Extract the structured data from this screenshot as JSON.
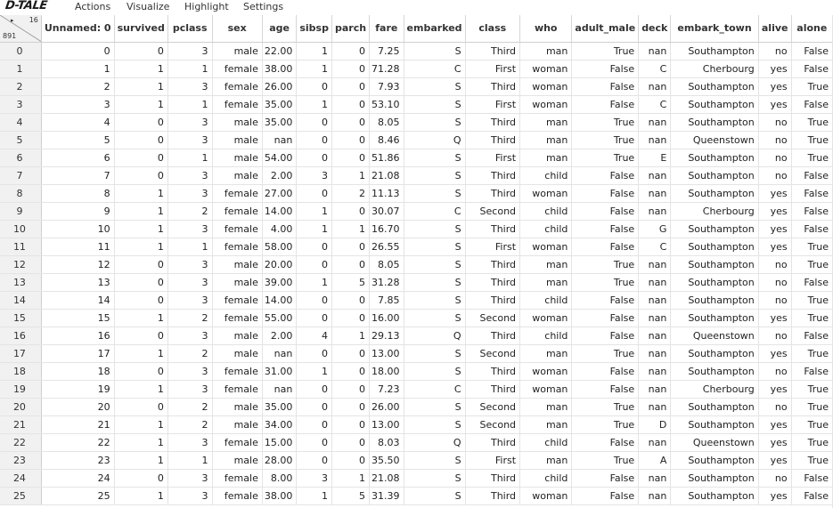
{
  "app": {
    "logo": "D-TALE"
  },
  "menu": [
    {
      "label": "Actions"
    },
    {
      "label": "Visualize"
    },
    {
      "label": "Highlight"
    },
    {
      "label": "Settings"
    }
  ],
  "grid": {
    "column_count": "16",
    "row_count": "891",
    "play_icon": "▸",
    "columns": [
      "Unnamed: 0",
      "survived",
      "pclass",
      "sex",
      "age",
      "sibsp",
      "parch",
      "fare",
      "embarked",
      "class",
      "who",
      "adult_male",
      "deck",
      "embark_town",
      "alive",
      "alone"
    ],
    "rows": [
      [
        "0",
        "0",
        "0",
        "3",
        "male",
        "22.00",
        "1",
        "0",
        "7.25",
        "S",
        "Third",
        "man",
        "True",
        "nan",
        "Southampton",
        "no",
        "False"
      ],
      [
        "1",
        "1",
        "1",
        "1",
        "female",
        "38.00",
        "1",
        "0",
        "71.28",
        "C",
        "First",
        "woman",
        "False",
        "C",
        "Cherbourg",
        "yes",
        "False"
      ],
      [
        "2",
        "2",
        "1",
        "3",
        "female",
        "26.00",
        "0",
        "0",
        "7.93",
        "S",
        "Third",
        "woman",
        "False",
        "nan",
        "Southampton",
        "yes",
        "True"
      ],
      [
        "3",
        "3",
        "1",
        "1",
        "female",
        "35.00",
        "1",
        "0",
        "53.10",
        "S",
        "First",
        "woman",
        "False",
        "C",
        "Southampton",
        "yes",
        "False"
      ],
      [
        "4",
        "4",
        "0",
        "3",
        "male",
        "35.00",
        "0",
        "0",
        "8.05",
        "S",
        "Third",
        "man",
        "True",
        "nan",
        "Southampton",
        "no",
        "True"
      ],
      [
        "5",
        "5",
        "0",
        "3",
        "male",
        "nan",
        "0",
        "0",
        "8.46",
        "Q",
        "Third",
        "man",
        "True",
        "nan",
        "Queenstown",
        "no",
        "True"
      ],
      [
        "6",
        "6",
        "0",
        "1",
        "male",
        "54.00",
        "0",
        "0",
        "51.86",
        "S",
        "First",
        "man",
        "True",
        "E",
        "Southampton",
        "no",
        "True"
      ],
      [
        "7",
        "7",
        "0",
        "3",
        "male",
        "2.00",
        "3",
        "1",
        "21.08",
        "S",
        "Third",
        "child",
        "False",
        "nan",
        "Southampton",
        "no",
        "False"
      ],
      [
        "8",
        "8",
        "1",
        "3",
        "female",
        "27.00",
        "0",
        "2",
        "11.13",
        "S",
        "Third",
        "woman",
        "False",
        "nan",
        "Southampton",
        "yes",
        "False"
      ],
      [
        "9",
        "9",
        "1",
        "2",
        "female",
        "14.00",
        "1",
        "0",
        "30.07",
        "C",
        "Second",
        "child",
        "False",
        "nan",
        "Cherbourg",
        "yes",
        "False"
      ],
      [
        "10",
        "10",
        "1",
        "3",
        "female",
        "4.00",
        "1",
        "1",
        "16.70",
        "S",
        "Third",
        "child",
        "False",
        "G",
        "Southampton",
        "yes",
        "False"
      ],
      [
        "11",
        "11",
        "1",
        "1",
        "female",
        "58.00",
        "0",
        "0",
        "26.55",
        "S",
        "First",
        "woman",
        "False",
        "C",
        "Southampton",
        "yes",
        "True"
      ],
      [
        "12",
        "12",
        "0",
        "3",
        "male",
        "20.00",
        "0",
        "0",
        "8.05",
        "S",
        "Third",
        "man",
        "True",
        "nan",
        "Southampton",
        "no",
        "True"
      ],
      [
        "13",
        "13",
        "0",
        "3",
        "male",
        "39.00",
        "1",
        "5",
        "31.28",
        "S",
        "Third",
        "man",
        "True",
        "nan",
        "Southampton",
        "no",
        "False"
      ],
      [
        "14",
        "14",
        "0",
        "3",
        "female",
        "14.00",
        "0",
        "0",
        "7.85",
        "S",
        "Third",
        "child",
        "False",
        "nan",
        "Southampton",
        "no",
        "True"
      ],
      [
        "15",
        "15",
        "1",
        "2",
        "female",
        "55.00",
        "0",
        "0",
        "16.00",
        "S",
        "Second",
        "woman",
        "False",
        "nan",
        "Southampton",
        "yes",
        "True"
      ],
      [
        "16",
        "16",
        "0",
        "3",
        "male",
        "2.00",
        "4",
        "1",
        "29.13",
        "Q",
        "Third",
        "child",
        "False",
        "nan",
        "Queenstown",
        "no",
        "False"
      ],
      [
        "17",
        "17",
        "1",
        "2",
        "male",
        "nan",
        "0",
        "0",
        "13.00",
        "S",
        "Second",
        "man",
        "True",
        "nan",
        "Southampton",
        "yes",
        "True"
      ],
      [
        "18",
        "18",
        "0",
        "3",
        "female",
        "31.00",
        "1",
        "0",
        "18.00",
        "S",
        "Third",
        "woman",
        "False",
        "nan",
        "Southampton",
        "no",
        "False"
      ],
      [
        "19",
        "19",
        "1",
        "3",
        "female",
        "nan",
        "0",
        "0",
        "7.23",
        "C",
        "Third",
        "woman",
        "False",
        "nan",
        "Cherbourg",
        "yes",
        "True"
      ],
      [
        "20",
        "20",
        "0",
        "2",
        "male",
        "35.00",
        "0",
        "0",
        "26.00",
        "S",
        "Second",
        "man",
        "True",
        "nan",
        "Southampton",
        "no",
        "True"
      ],
      [
        "21",
        "21",
        "1",
        "2",
        "male",
        "34.00",
        "0",
        "0",
        "13.00",
        "S",
        "Second",
        "man",
        "True",
        "D",
        "Southampton",
        "yes",
        "True"
      ],
      [
        "22",
        "22",
        "1",
        "3",
        "female",
        "15.00",
        "0",
        "0",
        "8.03",
        "Q",
        "Third",
        "child",
        "False",
        "nan",
        "Queenstown",
        "yes",
        "True"
      ],
      [
        "23",
        "23",
        "1",
        "1",
        "male",
        "28.00",
        "0",
        "0",
        "35.50",
        "S",
        "First",
        "man",
        "True",
        "A",
        "Southampton",
        "yes",
        "True"
      ],
      [
        "24",
        "24",
        "0",
        "3",
        "female",
        "8.00",
        "3",
        "1",
        "21.08",
        "S",
        "Third",
        "child",
        "False",
        "nan",
        "Southampton",
        "no",
        "False"
      ],
      [
        "25",
        "25",
        "1",
        "3",
        "female",
        "38.00",
        "1",
        "5",
        "31.39",
        "S",
        "Third",
        "woman",
        "False",
        "nan",
        "Southampton",
        "yes",
        "False"
      ]
    ]
  }
}
